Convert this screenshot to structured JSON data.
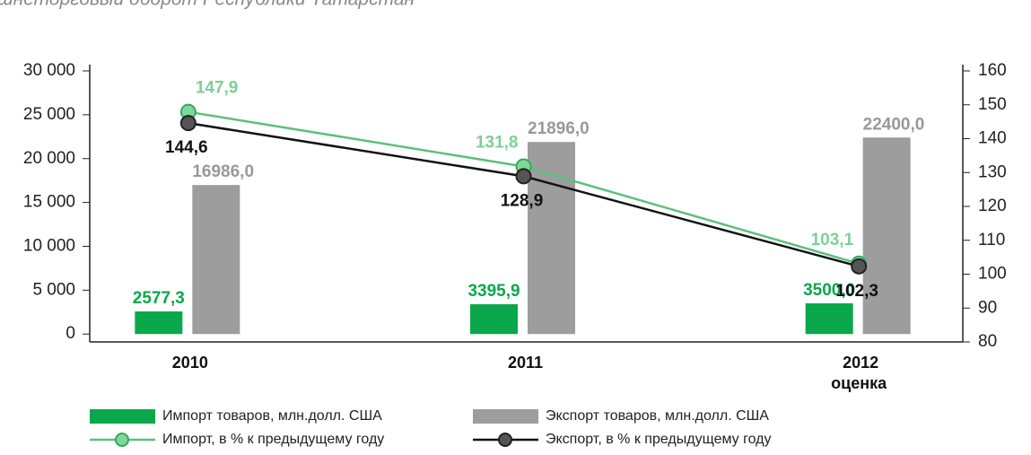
{
  "chart_data": {
    "type": "bar_line",
    "title": "Внешнеторговый оборот Республики Татарстан",
    "categories": [
      "2010",
      "2011",
      "2012"
    ],
    "x_note": "оценка",
    "series": [
      {
        "name": "Импорт товаров, млн.долл. США",
        "kind": "bar",
        "color": "#0aa84a",
        "values": [
          2577.3,
          3395.9,
          3500.0
        ],
        "value_labels": [
          "2577,3",
          "3395,9",
          "3500,0"
        ]
      },
      {
        "name": "Экспорт товаров, млн.долл. США",
        "kind": "bar",
        "color": "#9d9d9d",
        "values": [
          16986.0,
          21896.0,
          22400.0
        ],
        "value_labels": [
          "16986,0",
          "21896,0",
          "22400,0"
        ]
      },
      {
        "name": "Импорт, в % к предыдущему году",
        "kind": "line",
        "axis": "y2",
        "color": "#5cc07e",
        "values": [
          147.9,
          131.8,
          103.1
        ],
        "value_labels": [
          "147,9",
          "131,8",
          "103,1"
        ]
      },
      {
        "name": "Экспорт, в % к предыдущему году",
        "kind": "line",
        "axis": "y2",
        "color": "#111111",
        "values": [
          144.6,
          128.9,
          102.3
        ],
        "value_labels": [
          "144,6",
          "128,9",
          "102,3"
        ]
      }
    ],
    "ylim": [
      -900,
      30000
    ],
    "yticks": [
      0,
      {
        "value": 5000,
        "label": "5 000"
      },
      {
        "value": 10000,
        "label": "10 000"
      },
      {
        "value": 15000,
        "label": "15 000"
      },
      {
        "value": 20000,
        "label": "20 000"
      },
      {
        "value": 25000,
        "label": "25 000"
      },
      {
        "value": 30000,
        "label": "30 000"
      }
    ],
    "y2lim": [
      80,
      160
    ],
    "y2ticks": [
      80,
      90,
      100,
      110,
      120,
      130,
      140,
      150,
      160
    ]
  }
}
